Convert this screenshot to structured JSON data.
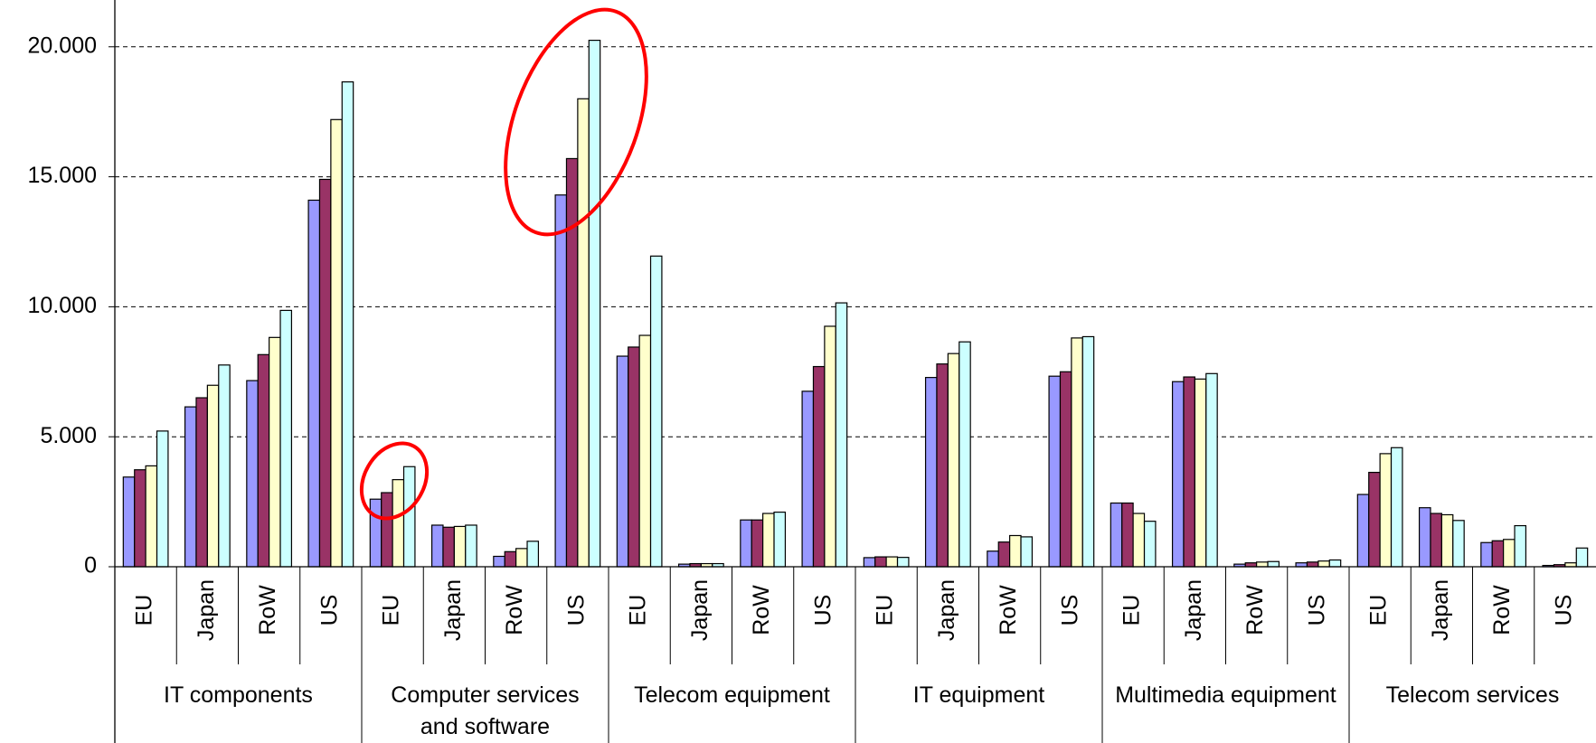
{
  "chart_data": {
    "type": "bar",
    "groups": [
      "IT components",
      "Computer services and software",
      "Telecom equipment",
      "IT equipment",
      "Multimedia equipment",
      "Telecom services"
    ],
    "categories": [
      "EU",
      "Japan",
      "RoW",
      "US",
      "EU",
      "Japan",
      "RoW",
      "US",
      "EU",
      "Japan",
      "RoW",
      "US",
      "EU",
      "Japan",
      "RoW",
      "US",
      "EU",
      "Japan",
      "RoW",
      "US",
      "EU",
      "Japan",
      "RoW",
      "US"
    ],
    "series": [
      {
        "color": "#9999ff",
        "values": [
          3450,
          6150,
          7160,
          14100,
          2600,
          1600,
          400,
          14300,
          8100,
          100,
          1800,
          6750,
          350,
          7280,
          600,
          7330,
          2450,
          7120,
          100,
          150,
          2780,
          2270,
          930,
          50
        ]
      },
      {
        "color": "#993366",
        "values": [
          3730,
          6500,
          8160,
          14900,
          2850,
          1520,
          580,
          15700,
          8450,
          120,
          1800,
          7700,
          380,
          7800,
          950,
          7500,
          2450,
          7300,
          150,
          180,
          3630,
          2050,
          1000,
          80
        ]
      },
      {
        "color": "#ffffcc",
        "values": [
          3880,
          6980,
          8820,
          17200,
          3350,
          1550,
          700,
          18000,
          8900,
          120,
          2050,
          9250,
          380,
          8200,
          1200,
          8800,
          2050,
          7220,
          180,
          220,
          4350,
          2000,
          1050,
          150
        ]
      },
      {
        "color": "#ccffff",
        "values": [
          5220,
          7760,
          9860,
          18650,
          3850,
          1600,
          980,
          20250,
          11950,
          120,
          2100,
          10150,
          360,
          8650,
          1150,
          8850,
          1750,
          7430,
          200,
          260,
          4580,
          1780,
          1580,
          720
        ]
      }
    ],
    "ylim": [
      0,
      21800
    ],
    "yticks": [
      0,
      {
        "value": 5000,
        "label": "5.000"
      },
      {
        "value": 10000,
        "label": "10.000"
      },
      {
        "value": 15000,
        "label": "15.000"
      },
      {
        "value": 20000,
        "label": "20.000"
      }
    ],
    "grid": true
  }
}
